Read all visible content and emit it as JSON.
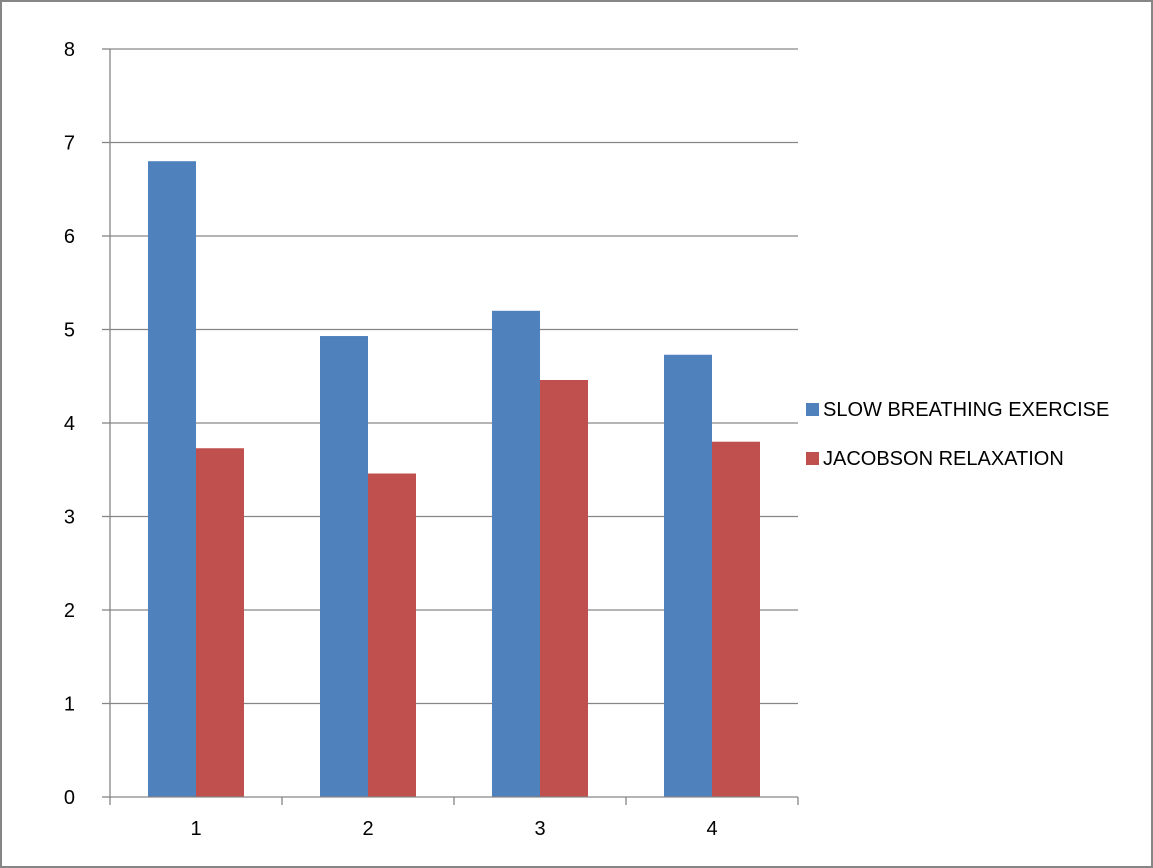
{
  "chart_data": {
    "type": "bar",
    "categories": [
      "1",
      "2",
      "3",
      "4"
    ],
    "series": [
      {
        "name": "SLOW BREATHING EXERCISE",
        "values": [
          6.8,
          4.93,
          5.2,
          4.73
        ],
        "color": "#4f81bd"
      },
      {
        "name": "JACOBSON RELAXATION",
        "values": [
          3.73,
          3.46,
          4.46,
          3.8
        ],
        "color": "#c0504d"
      }
    ],
    "title": "",
    "xlabel": "",
    "ylabel": "",
    "ylim": [
      0,
      8
    ],
    "yticks": [
      0,
      1,
      2,
      3,
      4,
      5,
      6,
      7,
      8
    ],
    "grid": true,
    "legend_position": "right"
  },
  "colors": {
    "gridline": "#868686",
    "frame": "#868686"
  }
}
